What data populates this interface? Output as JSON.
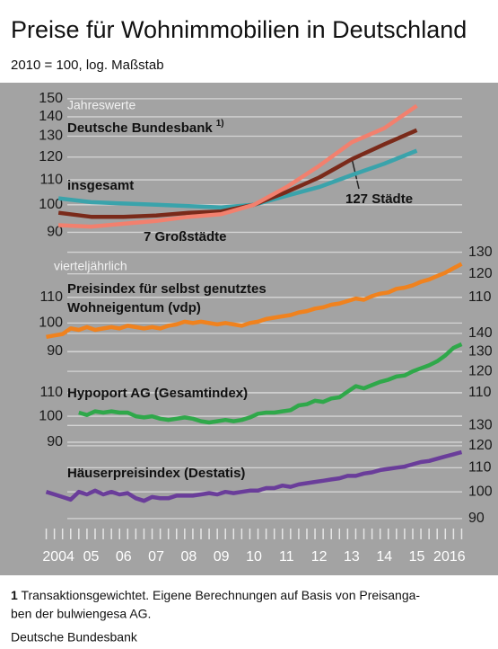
{
  "chart_data": [
    {
      "type": "line",
      "title": "Preise für Wohnimmobilien in Deutschland",
      "subtitle": "2010 = 100, log. Maßstab",
      "frequency": "Jahreswerte",
      "heading": "Deutsche Bundesbank",
      "heading_note": "1)",
      "log_scale": true,
      "grid": true,
      "ylim": [
        88,
        152
      ],
      "yticks": [
        90,
        100,
        110,
        120,
        130,
        140,
        150
      ],
      "series": [
        {
          "name": "insgesamt",
          "color": "#3aa3ab",
          "x": [
            2004,
            2005,
            2006,
            2007,
            2008,
            2009,
            2010,
            2011,
            2012,
            2013,
            2014,
            2015
          ],
          "values": [
            102.5,
            101,
            100.5,
            100,
            99.5,
            99,
            100,
            103.5,
            107,
            112,
            117,
            123
          ]
        },
        {
          "name": "127 Städte",
          "color": "#7a2a1a",
          "x": [
            2004,
            2005,
            2006,
            2007,
            2008,
            2009,
            2010,
            2011,
            2012,
            2013,
            2014,
            2015
          ],
          "values": [
            97,
            95.5,
            95.5,
            96,
            97,
            97.5,
            100,
            105,
            111,
            119,
            126,
            133
          ]
        },
        {
          "name": "7 Großstädte",
          "color": "#f2806e",
          "x": [
            2004,
            2005,
            2006,
            2007,
            2008,
            2009,
            2010,
            2011,
            2012,
            2013,
            2014,
            2015
          ],
          "values": [
            92.5,
            92,
            93,
            94,
            95.5,
            96.5,
            100,
            107,
            116,
            127,
            134,
            146
          ]
        }
      ]
    },
    {
      "type": "line",
      "frequency": "vierteljährlich",
      "log_scale": true,
      "grid": true,
      "ylim": [
        90,
        132
      ],
      "yticks": [
        90,
        100,
        110
      ],
      "y2lim": [
        90,
        132
      ],
      "y2ticks": [
        110,
        120,
        130
      ],
      "series": [
        {
          "name": "Preisindex für selbst genutztes\nWohneigentum (vdp)",
          "color": "#f0821e",
          "x": [
            2004,
            2004.25,
            2004.5,
            2004.75,
            2005,
            2005.25,
            2005.5,
            2005.75,
            2006,
            2006.25,
            2006.5,
            2006.75,
            2007,
            2007.25,
            2007.5,
            2007.75,
            2008,
            2008.25,
            2008.5,
            2008.75,
            2009,
            2009.25,
            2009.5,
            2009.75,
            2010,
            2010.25,
            2010.5,
            2010.75,
            2011,
            2011.25,
            2011.5,
            2011.75,
            2012,
            2012.25,
            2012.5,
            2012.75,
            2013,
            2013.25,
            2013.5,
            2013.75,
            2014,
            2014.25,
            2014.5,
            2014.75,
            2015,
            2015.25,
            2015.5,
            2015.75,
            2016,
            2016.25,
            2016.5,
            2016.75
          ],
          "values": [
            95,
            95.5,
            96,
            98,
            97.5,
            98.5,
            97.5,
            98,
            98.5,
            98,
            99,
            98.5,
            98,
            98.5,
            98,
            99,
            99.5,
            100.5,
            100,
            100.5,
            100,
            99.5,
            100,
            99.5,
            99,
            100,
            100.5,
            101.5,
            102,
            102.5,
            103,
            104,
            104.5,
            105.5,
            106,
            107,
            107.5,
            108.5,
            109.5,
            109,
            110.5,
            111.5,
            112,
            113.5,
            114,
            115,
            116.5,
            117.5,
            119,
            120.5,
            122.5,
            124.5
          ]
        }
      ]
    },
    {
      "type": "line",
      "log_scale": true,
      "grid": true,
      "ylim": [
        89,
        142
      ],
      "yticks": [
        90,
        100,
        110
      ],
      "y2lim": [
        89,
        142
      ],
      "y2ticks": [
        110,
        120,
        130,
        140
      ],
      "series": [
        {
          "name": "Hypoport AG (Gesamtindex)",
          "color": "#2fa84a",
          "x": [
            2005,
            2005.25,
            2005.5,
            2005.75,
            2006,
            2006.25,
            2006.5,
            2006.75,
            2007,
            2007.25,
            2007.5,
            2007.75,
            2008,
            2008.25,
            2008.5,
            2008.75,
            2009,
            2009.25,
            2009.5,
            2009.75,
            2010,
            2010.25,
            2010.5,
            2010.75,
            2011,
            2011.25,
            2011.5,
            2011.75,
            2012,
            2012.25,
            2012.5,
            2012.75,
            2013,
            2013.25,
            2013.5,
            2013.75,
            2014,
            2014.25,
            2014.5,
            2014.75,
            2015,
            2015.25,
            2015.5,
            2015.75,
            2016,
            2016.25,
            2016.5,
            2016.75
          ],
          "values": [
            101.5,
            100.5,
            102,
            101.5,
            102,
            101.5,
            101.5,
            100,
            99.5,
            100,
            99,
            98.5,
            99,
            99.5,
            99,
            98,
            97.5,
            98,
            98.5,
            98,
            98.5,
            99.5,
            101,
            101.5,
            101.5,
            102,
            102.5,
            104.5,
            105,
            106.5,
            106,
            107.5,
            108,
            110.5,
            113,
            112,
            113.5,
            115,
            116,
            117.5,
            118,
            120,
            121.5,
            123,
            125,
            128,
            132,
            134
          ]
        }
      ]
    },
    {
      "type": "line",
      "log_scale": true,
      "grid": true,
      "y2lim": [
        89,
        132
      ],
      "y2ticks": [
        90,
        100,
        110,
        120,
        130
      ],
      "xlim": [
        2004,
        2017
      ],
      "xticks": [
        2004,
        {
          "value": 2005,
          "label": "05"
        },
        {
          "value": 2006,
          "label": "06"
        },
        {
          "value": 2007,
          "label": "07"
        },
        {
          "value": 2008,
          "label": "08"
        },
        {
          "value": 2009,
          "label": "09"
        },
        {
          "value": 2010,
          "label": "10"
        },
        {
          "value": 2011,
          "label": "11"
        },
        {
          "value": 2012,
          "label": "12"
        },
        {
          "value": 2013,
          "label": "13"
        },
        {
          "value": 2014,
          "label": "14"
        },
        {
          "value": 2015,
          "label": "15"
        },
        2016
      ],
      "series": [
        {
          "name": "Häuserpreisindex (Destatis)",
          "color": "#6a3d9a",
          "axis": "y2",
          "x": [
            2004,
            2004.25,
            2004.5,
            2004.75,
            2005,
            2005.25,
            2005.5,
            2005.75,
            2006,
            2006.25,
            2006.5,
            2006.75,
            2007,
            2007.25,
            2007.5,
            2007.75,
            2008,
            2008.25,
            2008.5,
            2008.75,
            2009,
            2009.25,
            2009.5,
            2009.75,
            2010,
            2010.25,
            2010.5,
            2010.75,
            2011,
            2011.25,
            2011.5,
            2011.75,
            2012,
            2012.25,
            2012.5,
            2012.75,
            2013,
            2013.25,
            2013.5,
            2013.75,
            2014,
            2014.25,
            2014.5,
            2014.75,
            2015,
            2015.25,
            2015.5,
            2015.75,
            2016,
            2016.25,
            2016.5,
            2016.75
          ],
          "values": [
            100,
            99,
            98,
            97,
            100,
            99,
            100.5,
            99,
            100,
            99,
            99.5,
            97.5,
            96.5,
            98,
            97.5,
            97.5,
            98.5,
            98.5,
            98.5,
            99,
            99.5,
            99,
            100,
            99.5,
            100,
            100.5,
            100.5,
            101.5,
            101.5,
            102.5,
            102,
            103,
            103.5,
            104,
            104.5,
            105,
            105.5,
            106.5,
            106.5,
            107.5,
            108,
            109,
            109.5,
            110,
            110.5,
            111.5,
            112.5,
            113,
            114,
            115,
            116,
            117
          ]
        }
      ]
    }
  ],
  "footnote": {
    "marker": "1",
    "lines": [
      "Transaktionsgewichtet. Eigene Berechnungen auf Basis von Preisanga-",
      "ben der bulwiengesa AG."
    ]
  },
  "source": "Deutsche Bundesbank"
}
